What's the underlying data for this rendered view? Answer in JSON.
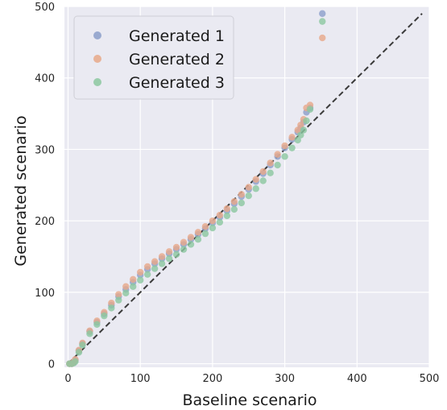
{
  "chart_data": {
    "type": "scatter",
    "xlabel": "Baseline scenario",
    "ylabel": "Generated scenario",
    "xlim": [
      -5,
      500
    ],
    "ylim": [
      -5,
      500
    ],
    "xticks": [
      "0",
      "100",
      "200",
      "300",
      "400",
      "500"
    ],
    "yticks": [
      "0",
      "100",
      "200",
      "300",
      "400",
      "500"
    ],
    "grid": true,
    "legend_position": "top-left",
    "reference_line": {
      "style": "dashed",
      "color": "#3a3a3a",
      "x": [
        0,
        490
      ],
      "y": [
        0,
        490
      ]
    },
    "series": [
      {
        "name": "Generated 1",
        "color": "#8c9fca",
        "points": [
          [
            2,
            0
          ],
          [
            5,
            0
          ],
          [
            8,
            2
          ],
          [
            10,
            5
          ],
          [
            15,
            18
          ],
          [
            20,
            28
          ],
          [
            30,
            45
          ],
          [
            40,
            58
          ],
          [
            50,
            70
          ],
          [
            60,
            82
          ],
          [
            70,
            94
          ],
          [
            80,
            104
          ],
          [
            90,
            114
          ],
          [
            100,
            124
          ],
          [
            110,
            132
          ],
          [
            120,
            140
          ],
          [
            130,
            147
          ],
          [
            140,
            154
          ],
          [
            150,
            160
          ],
          [
            160,
            167
          ],
          [
            170,
            174
          ],
          [
            180,
            181
          ],
          [
            190,
            189
          ],
          [
            200,
            197
          ],
          [
            210,
            205
          ],
          [
            220,
            214
          ],
          [
            230,
            224
          ],
          [
            240,
            234
          ],
          [
            250,
            244
          ],
          [
            260,
            255
          ],
          [
            270,
            266
          ],
          [
            280,
            278
          ],
          [
            290,
            290
          ],
          [
            300,
            302
          ],
          [
            310,
            314
          ],
          [
            318,
            324
          ],
          [
            322,
            330
          ],
          [
            326,
            338
          ],
          [
            330,
            352
          ],
          [
            335,
            358
          ],
          [
            352,
            490
          ]
        ]
      },
      {
        "name": "Generated 2",
        "color": "#e8a98a",
        "points": [
          [
            2,
            0
          ],
          [
            5,
            0
          ],
          [
            8,
            3
          ],
          [
            10,
            6
          ],
          [
            15,
            19
          ],
          [
            20,
            29
          ],
          [
            30,
            46
          ],
          [
            40,
            60
          ],
          [
            50,
            72
          ],
          [
            60,
            85
          ],
          [
            70,
            97
          ],
          [
            80,
            108
          ],
          [
            90,
            118
          ],
          [
            100,
            128
          ],
          [
            110,
            136
          ],
          [
            120,
            143
          ],
          [
            130,
            150
          ],
          [
            140,
            157
          ],
          [
            150,
            163
          ],
          [
            160,
            170
          ],
          [
            170,
            177
          ],
          [
            180,
            184
          ],
          [
            190,
            192
          ],
          [
            200,
            200
          ],
          [
            210,
            208
          ],
          [
            220,
            217
          ],
          [
            230,
            227
          ],
          [
            240,
            237
          ],
          [
            250,
            247
          ],
          [
            260,
            258
          ],
          [
            270,
            269
          ],
          [
            280,
            281
          ],
          [
            290,
            293
          ],
          [
            300,
            305
          ],
          [
            310,
            317
          ],
          [
            318,
            327
          ],
          [
            322,
            334
          ],
          [
            326,
            342
          ],
          [
            330,
            358
          ],
          [
            335,
            362
          ],
          [
            352,
            456
          ]
        ]
      },
      {
        "name": "Generated 3",
        "color": "#8cc8a0",
        "points": [
          [
            2,
            0
          ],
          [
            5,
            0
          ],
          [
            8,
            1
          ],
          [
            10,
            3
          ],
          [
            15,
            16
          ],
          [
            20,
            26
          ],
          [
            30,
            42
          ],
          [
            40,
            55
          ],
          [
            50,
            67
          ],
          [
            60,
            78
          ],
          [
            70,
            89
          ],
          [
            80,
            99
          ],
          [
            90,
            108
          ],
          [
            100,
            117
          ],
          [
            110,
            125
          ],
          [
            120,
            133
          ],
          [
            130,
            140
          ],
          [
            140,
            147
          ],
          [
            150,
            153
          ],
          [
            160,
            160
          ],
          [
            170,
            167
          ],
          [
            180,
            174
          ],
          [
            190,
            182
          ],
          [
            200,
            190
          ],
          [
            210,
            198
          ],
          [
            220,
            207
          ],
          [
            230,
            216
          ],
          [
            240,
            225
          ],
          [
            250,
            235
          ],
          [
            260,
            245
          ],
          [
            270,
            256
          ],
          [
            280,
            267
          ],
          [
            290,
            278
          ],
          [
            300,
            290
          ],
          [
            310,
            302
          ],
          [
            318,
            313
          ],
          [
            322,
            320
          ],
          [
            326,
            327
          ],
          [
            330,
            340
          ],
          [
            335,
            356
          ],
          [
            352,
            479
          ]
        ]
      }
    ]
  }
}
